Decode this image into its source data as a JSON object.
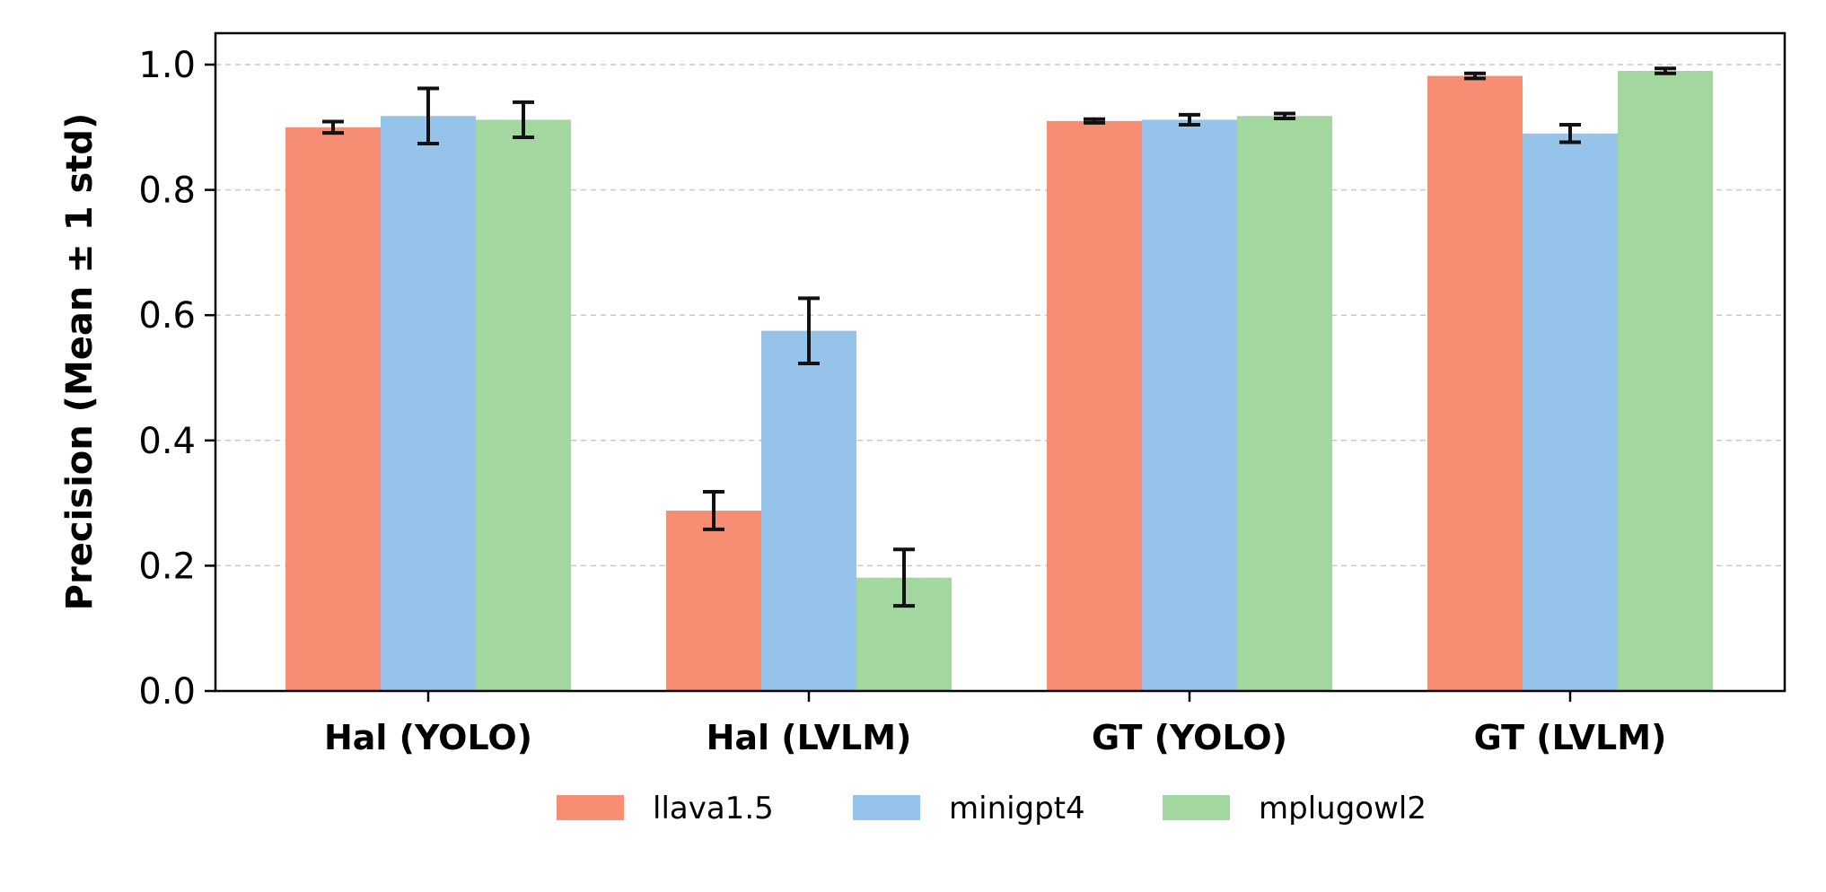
{
  "chart_data": {
    "type": "bar",
    "title": "",
    "xlabel": "",
    "ylabel": "Precision (Mean ± 1 std)",
    "ylim": [
      0,
      1.05
    ],
    "yticks": [
      0.0,
      0.2,
      0.4,
      0.6,
      0.8,
      1.0
    ],
    "ytick_labels": [
      "0.0",
      "0.2",
      "0.4",
      "0.6",
      "0.8",
      "1.0"
    ],
    "grid": "y, dashed",
    "legend_position": "bottom-center",
    "categories": [
      "Hal (YOLO)",
      "Hal (LVLM)",
      "GT (YOLO)",
      "GT (LVLM)"
    ],
    "series": [
      {
        "name": "llava1.5",
        "color": "#f78d72",
        "values": [
          0.9,
          0.288,
          0.91,
          0.982
        ],
        "errors": [
          0.009,
          0.03,
          0.003,
          0.004
        ]
      },
      {
        "name": "minigpt4",
        "color": "#96c3ea",
        "values": [
          0.918,
          0.575,
          0.912,
          0.89
        ],
        "errors": [
          0.044,
          0.052,
          0.008,
          0.014
        ]
      },
      {
        "name": "mplugowl2",
        "color": "#a3d7a0",
        "values": [
          0.912,
          0.181,
          0.918,
          0.99
        ],
        "errors": [
          0.028,
          0.045,
          0.004,
          0.004
        ]
      }
    ]
  }
}
